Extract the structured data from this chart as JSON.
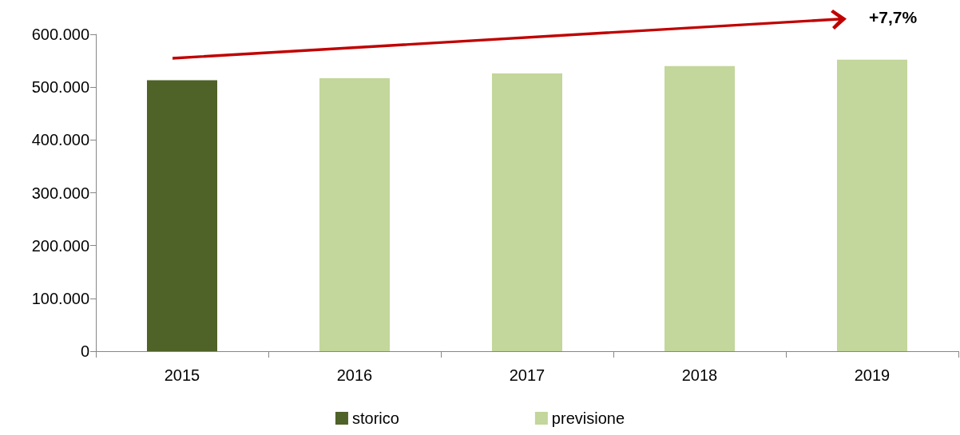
{
  "chart_data": {
    "type": "bar",
    "categories": [
      "2015",
      "2016",
      "2017",
      "2018",
      "2019"
    ],
    "series": [
      {
        "name": "storico",
        "color": "#4f6228",
        "values": [
          513000,
          null,
          null,
          null,
          null
        ]
      },
      {
        "name": "previsione",
        "color": "#c3d69b",
        "values": [
          null,
          517000,
          526000,
          540000,
          552000
        ]
      }
    ],
    "ylim": [
      0,
      600000
    ],
    "yticks": [
      {
        "value": 0,
        "label": "0"
      },
      {
        "value": 100000,
        "label": "100.000"
      },
      {
        "value": 200000,
        "label": "200.000"
      },
      {
        "value": 300000,
        "label": "300.000"
      },
      {
        "value": 400000,
        "label": "400.000"
      },
      {
        "value": 500000,
        "label": "500.000"
      },
      {
        "value": 600000,
        "label": "600.000"
      }
    ],
    "grid": false,
    "legend": "bottom",
    "annotations": [
      "+7,7%"
    ]
  }
}
